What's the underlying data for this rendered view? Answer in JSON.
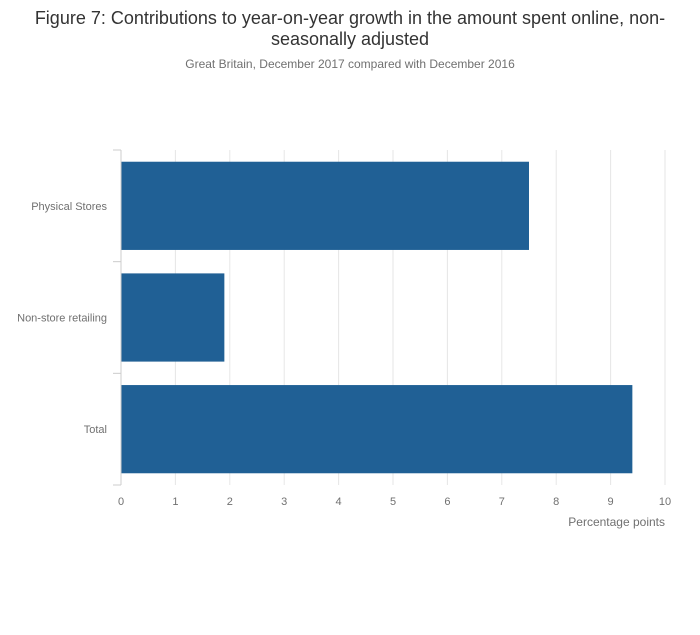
{
  "chart_data": {
    "type": "bar",
    "orientation": "horizontal",
    "title": "Figure 7: Contributions to year-on-year growth in the amount spent online, non-seasonally adjusted",
    "subtitle": "Great Britain, December 2017 compared with December 2016",
    "categories": [
      "Physical Stores",
      "Non-store retailing",
      "Total"
    ],
    "values": [
      7.5,
      1.9,
      9.4
    ],
    "xlabel": "Percentage points",
    "ylabel": "",
    "xlim": [
      0,
      10
    ],
    "xticks": [
      "0",
      "1",
      "2",
      "3",
      "4",
      "5",
      "6",
      "7",
      "8",
      "9",
      "10"
    ],
    "grid": true,
    "bar_color": "#206095",
    "legend": "none"
  }
}
